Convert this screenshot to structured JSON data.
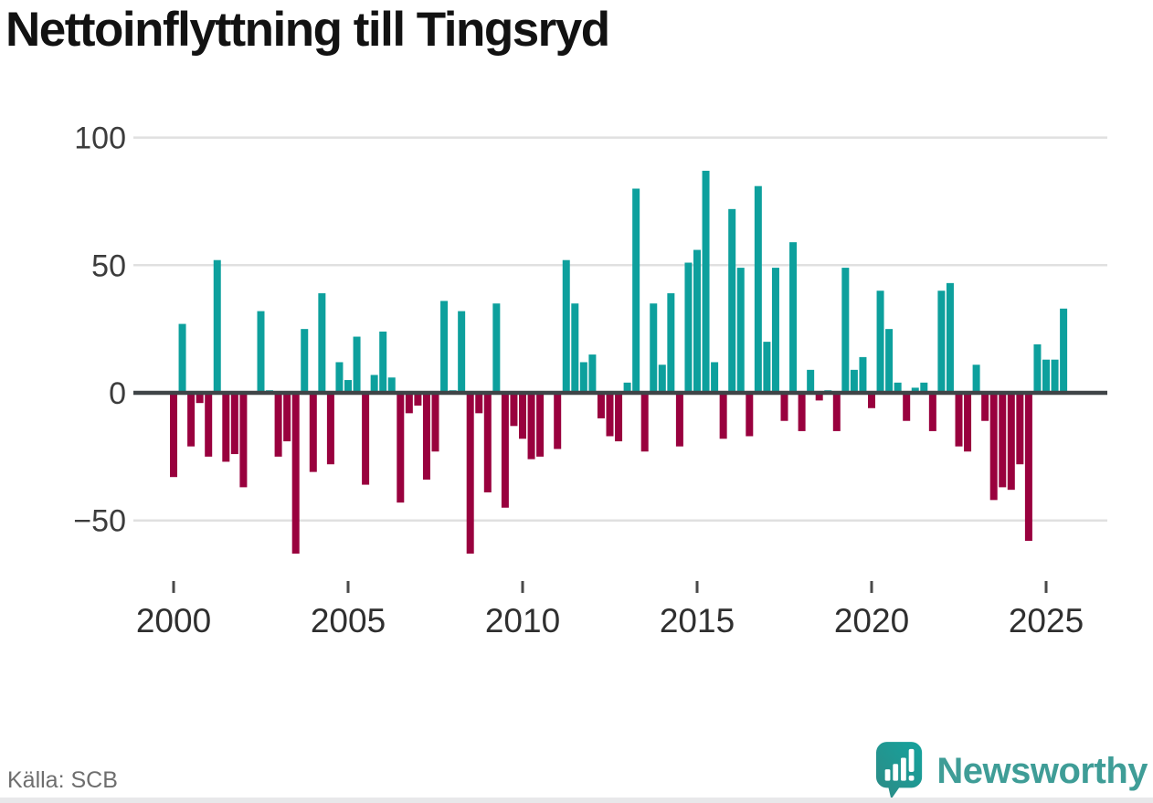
{
  "title": "Nettoinflyttning till Tingsryd",
  "source": "Källa: SCB",
  "branding": {
    "name": "Newsworthy"
  },
  "colors": {
    "positive": "#0DA09D",
    "negative": "#99013E",
    "zero_line": "#3F4447",
    "gridline": "#E0E0E0",
    "axis_text": "#3C3C3C",
    "tick_mark": "#4A4A4A",
    "title_text": "#121212",
    "source_text": "#6E6E6E",
    "brand_teal": "#3F9D97"
  },
  "chart_data": {
    "type": "bar",
    "title": "Nettoinflyttning till Tingsryd",
    "frequency": "quarterly",
    "start": "2000 Q1",
    "end": "2025 Q3",
    "grid": "horizontal",
    "legend": "none",
    "ylim": [
      -70,
      105
    ],
    "y_ticks": [
      100,
      50,
      0,
      -50
    ],
    "x_tick_labels": [
      "2000",
      "2005",
      "2010",
      "2015",
      "2020",
      "2025"
    ],
    "values": [
      -33,
      27,
      -21,
      -4,
      -25,
      52,
      -27,
      -24,
      -37,
      0,
      32,
      1,
      -25,
      -19,
      -63,
      25,
      -31,
      39,
      -28,
      12,
      5,
      22,
      -36,
      7,
      24,
      6,
      -43,
      -8,
      -5,
      -34,
      -23,
      36,
      1,
      32,
      -63,
      -8,
      -39,
      35,
      -45,
      -13,
      -18,
      -26,
      -25,
      0,
      -22,
      52,
      35,
      12,
      15,
      -10,
      -17,
      -19,
      4,
      80,
      -23,
      35,
      11,
      39,
      -21,
      51,
      56,
      87,
      12,
      -18,
      72,
      49,
      -17,
      81,
      20,
      49,
      -11,
      59,
      -15,
      9,
      -3,
      1,
      -15,
      49,
      9,
      14,
      -6,
      40,
      25,
      4,
      -11,
      2,
      4,
      -15,
      40,
      43,
      -21,
      -23,
      11,
      -11,
      -42,
      -37,
      -38,
      -28,
      -58,
      19,
      13,
      13,
      33
    ]
  }
}
